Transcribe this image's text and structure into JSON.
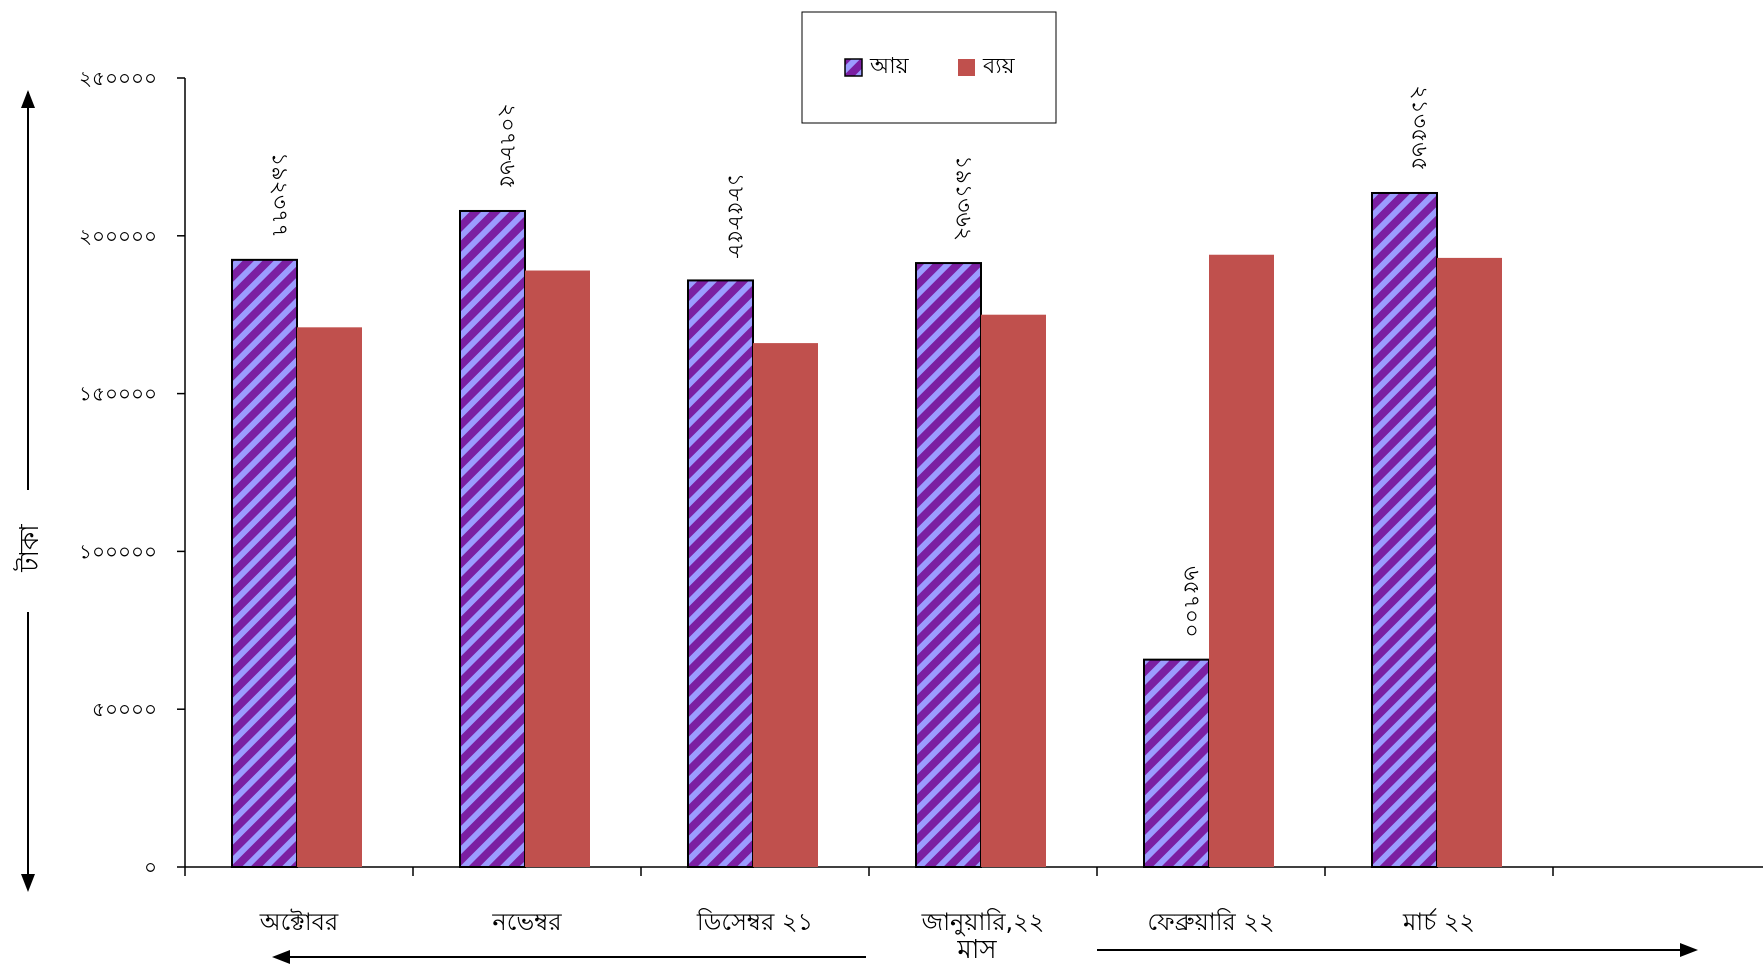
{
  "chart_data": {
    "type": "bar",
    "categories": [
      "অক্টোবর",
      "নভেম্বর",
      "ডিসেম্বর ২১",
      "জানুয়ারি,২২",
      "ফেব্রুয়ারি ২২",
      "মার্চ ২২"
    ],
    "series": [
      {
        "name": "আয়",
        "values": [
          192377,
          207865,
          185858,
          191362,
          65700,
          213565
        ],
        "data_labels": [
          "১৯২৩৭৭",
          "২০৭৮৬৫",
          "১৮৫৮৫৮",
          "১৯১৩৬২",
          "৬৫৭০০",
          "২১৩৫৬৫"
        ],
        "color": "#7B1FA2",
        "stripe_color": "#9C9CFF",
        "pattern": "diagonal-stripes"
      },
      {
        "name": "ব্যয়",
        "values": [
          171000,
          189000,
          166000,
          175000,
          194000,
          193000
        ],
        "color": "#C0504D"
      }
    ],
    "ylim": [
      0,
      250000
    ],
    "yticks": [
      0,
      50000,
      100000,
      150000,
      200000,
      250000
    ],
    "ytick_labels": [
      "০",
      "৫০০০০",
      "১০০০০০",
      "১৫০০০০",
      "২০০০০০",
      "২৫০০০০"
    ],
    "xlabel": "মাস",
    "ylabel": "টাকা",
    "grid": false,
    "legend": "top-center"
  }
}
